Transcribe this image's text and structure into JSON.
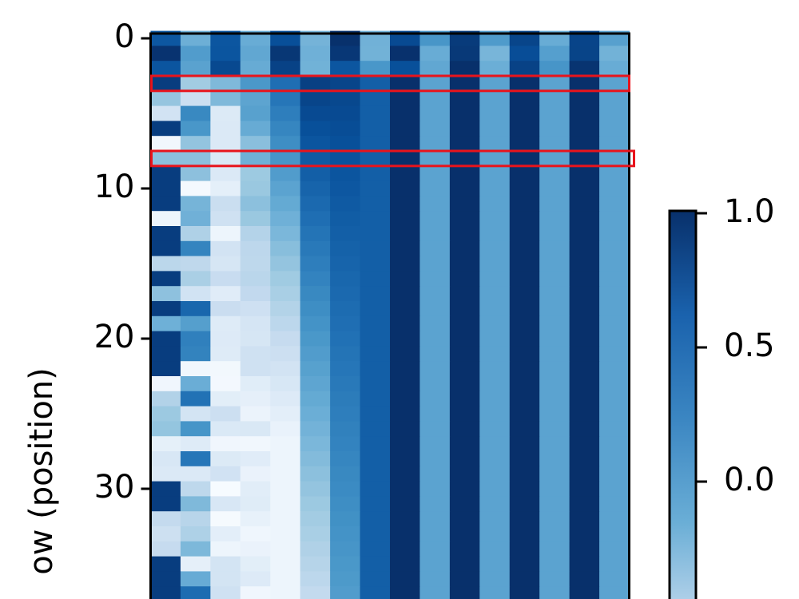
{
  "chart_data": {
    "type": "heatmap",
    "title": "",
    "xlabel": "",
    "ylabel": "ow (position)",
    "y_ticks": [
      "0",
      "10",
      "20",
      "30"
    ],
    "y_tick_values": [
      0,
      10,
      20,
      30
    ],
    "visible_rows": [
      0,
      37
    ],
    "n_cols": 16,
    "colormap": "Blues",
    "colorbar": {
      "ticks": [
        "1.0",
        "0.5",
        "0.0"
      ],
      "tick_values": [
        1.0,
        0.5,
        0.0
      ]
    },
    "highlighted_rows": [
      3,
      8
    ],
    "highlight_color": "#e8141c",
    "grid": false
  }
}
